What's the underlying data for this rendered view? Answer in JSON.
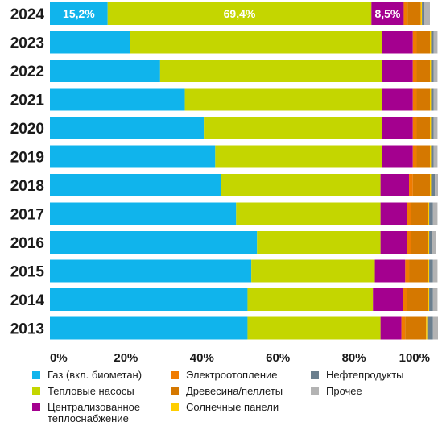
{
  "chart_data": {
    "type": "bar",
    "orientation": "horizontal",
    "stacked": true,
    "categories": [
      "2024",
      "2023",
      "2022",
      "2021",
      "2020",
      "2019",
      "2018",
      "2017",
      "2016",
      "2015",
      "2014",
      "2013"
    ],
    "xlim": [
      0,
      100
    ],
    "x_ticks": [
      "0%",
      "20%",
      "40%",
      "60%",
      "80%",
      "100%"
    ],
    "grid": false,
    "legend_position": "bottom",
    "series": [
      {
        "name": "Газ (вкл. биометан)",
        "color": "#10b4ec",
        "values": [
          15.2,
          21.0,
          29.0,
          35.5,
          40.5,
          43.5,
          45.0,
          49.0,
          54.5,
          53.0,
          52.0,
          52.0
        ]
      },
      {
        "name": "Тепловые насосы",
        "color": "#c4d600",
        "values": [
          69.4,
          66.5,
          58.5,
          52.0,
          47.0,
          44.0,
          42.0,
          38.0,
          32.5,
          32.5,
          33.0,
          35.0
        ]
      },
      {
        "name": "Централизованное теплоснабжение",
        "color": "#a4008f",
        "values": [
          8.5,
          8.0,
          8.0,
          8.0,
          8.0,
          8.0,
          7.5,
          7.0,
          7.0,
          8.0,
          8.0,
          5.5
        ]
      },
      {
        "name": "Электроотопление",
        "color": "#f07b00",
        "values": [
          1.0,
          1.0,
          1.0,
          1.0,
          1.0,
          1.0,
          1.0,
          1.0,
          1.0,
          1.0,
          1.0,
          1.0
        ]
      },
      {
        "name": "Древесина/пеллеты",
        "color": "#d57800",
        "values": [
          3.5,
          3.5,
          3.5,
          3.5,
          3.5,
          3.5,
          4.5,
          4.5,
          4.5,
          5.0,
          5.5,
          5.5
        ]
      },
      {
        "name": "Солнечные панели",
        "color": "#ffce00",
        "values": [
          0.3,
          0.3,
          0.3,
          0.3,
          0.3,
          0.3,
          0.3,
          0.3,
          0.3,
          0.3,
          0.3,
          0.3
        ]
      },
      {
        "name": "Нефтепродукты",
        "color": "#6b7f8e",
        "values": [
          0.6,
          0.7,
          0.7,
          0.7,
          0.7,
          0.7,
          1.0,
          1.0,
          0.8,
          1.0,
          1.0,
          1.5
        ]
      },
      {
        "name": "Прочее",
        "color": "#b3b3b3",
        "values": [
          1.5,
          1.0,
          1.0,
          1.0,
          1.0,
          1.0,
          1.2,
          1.2,
          1.0,
          1.2,
          1.2,
          1.5
        ]
      }
    ],
    "data_labels": [
      {
        "category": "2024",
        "series": "Газ (вкл. биометан)",
        "text": "15,2%"
      },
      {
        "category": "2024",
        "series": "Тепловые насосы",
        "text": "69,4%"
      },
      {
        "category": "2024",
        "series": "Централизованное теплоснабжение",
        "text": "8,5%"
      }
    ]
  }
}
